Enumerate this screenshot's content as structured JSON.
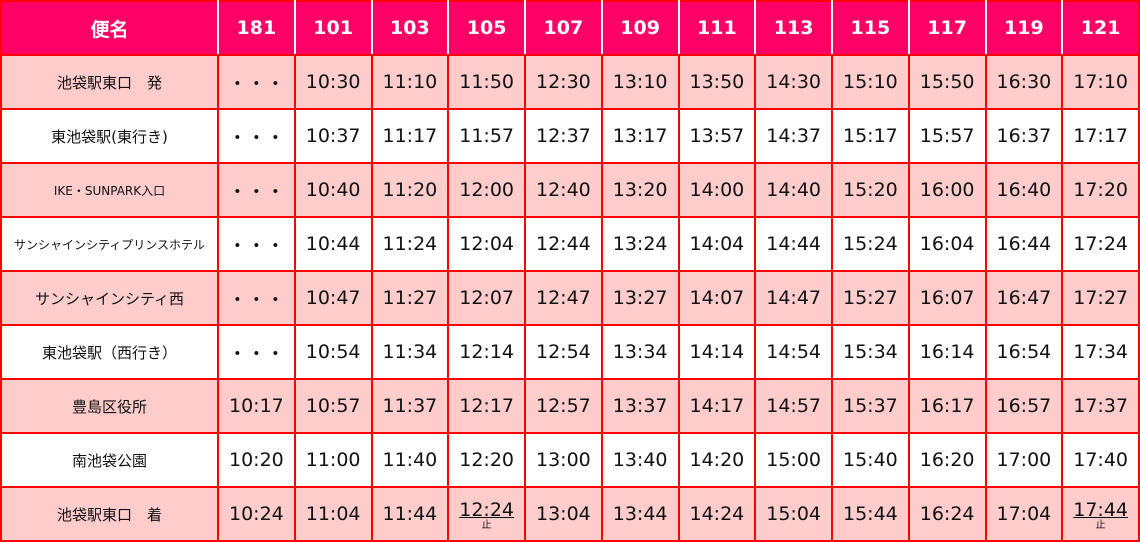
{
  "colors": {
    "header_bg": "#ff0066",
    "border": "#ff0000",
    "row_pink": "#ffcccc",
    "row_white": "#ffffff"
  },
  "header": [
    "便名",
    "181",
    "101",
    "103",
    "105",
    "107",
    "109",
    "111",
    "113",
    "115",
    "117",
    "119",
    "121"
  ],
  "rows": [
    {
      "stop": "池袋駅東口　発",
      "times": [
        "・・・",
        "10:30",
        "11:10",
        "11:50",
        "12:30",
        "13:10",
        "13:50",
        "14:30",
        "15:10",
        "15:50",
        "16:30",
        "17:10"
      ]
    },
    {
      "stop": "東池袋駅(東行き)",
      "times": [
        "・・・",
        "10:37",
        "11:17",
        "11:57",
        "12:37",
        "13:17",
        "13:57",
        "14:37",
        "15:17",
        "15:57",
        "16:37",
        "17:17"
      ]
    },
    {
      "stop": "IKE・SUNPARK入口",
      "times": [
        "・・・",
        "10:40",
        "11:20",
        "12:00",
        "12:40",
        "13:20",
        "14:00",
        "14:40",
        "15:20",
        "16:00",
        "16:40",
        "17:20"
      ]
    },
    {
      "stop": "サンシャインシティプリンスホテル",
      "times": [
        "・・・",
        "10:44",
        "11:24",
        "12:04",
        "12:44",
        "13:24",
        "14:04",
        "14:44",
        "15:24",
        "16:04",
        "16:44",
        "17:24"
      ]
    },
    {
      "stop": "サンシャインシティ西",
      "times": [
        "・・・",
        "10:47",
        "11:27",
        "12:07",
        "12:47",
        "13:27",
        "14:07",
        "14:47",
        "15:27",
        "16:07",
        "16:47",
        "17:27"
      ]
    },
    {
      "stop": "東池袋駅（西行き）",
      "times": [
        "・・・",
        "10:54",
        "11:34",
        "12:14",
        "12:54",
        "13:34",
        "14:14",
        "14:54",
        "15:34",
        "16:14",
        "16:54",
        "17:34"
      ]
    },
    {
      "stop": "豊島区役所",
      "times": [
        "10:17",
        "10:57",
        "11:37",
        "12:17",
        "12:57",
        "13:37",
        "14:17",
        "14:57",
        "15:37",
        "16:17",
        "16:57",
        "17:37"
      ]
    },
    {
      "stop": "南池袋公園",
      "times": [
        "10:20",
        "11:00",
        "11:40",
        "12:20",
        "13:00",
        "13:40",
        "14:20",
        "15:00",
        "15:40",
        "16:20",
        "17:00",
        "17:40"
      ]
    },
    {
      "stop": "池袋駅東口　着",
      "times": [
        "10:24",
        "11:04",
        "11:44",
        "12:24",
        "13:04",
        "13:44",
        "14:24",
        "15:04",
        "15:44",
        "16:24",
        "17:04",
        "17:44"
      ],
      "notes": {
        "3": "止",
        "11": "止"
      }
    }
  ]
}
